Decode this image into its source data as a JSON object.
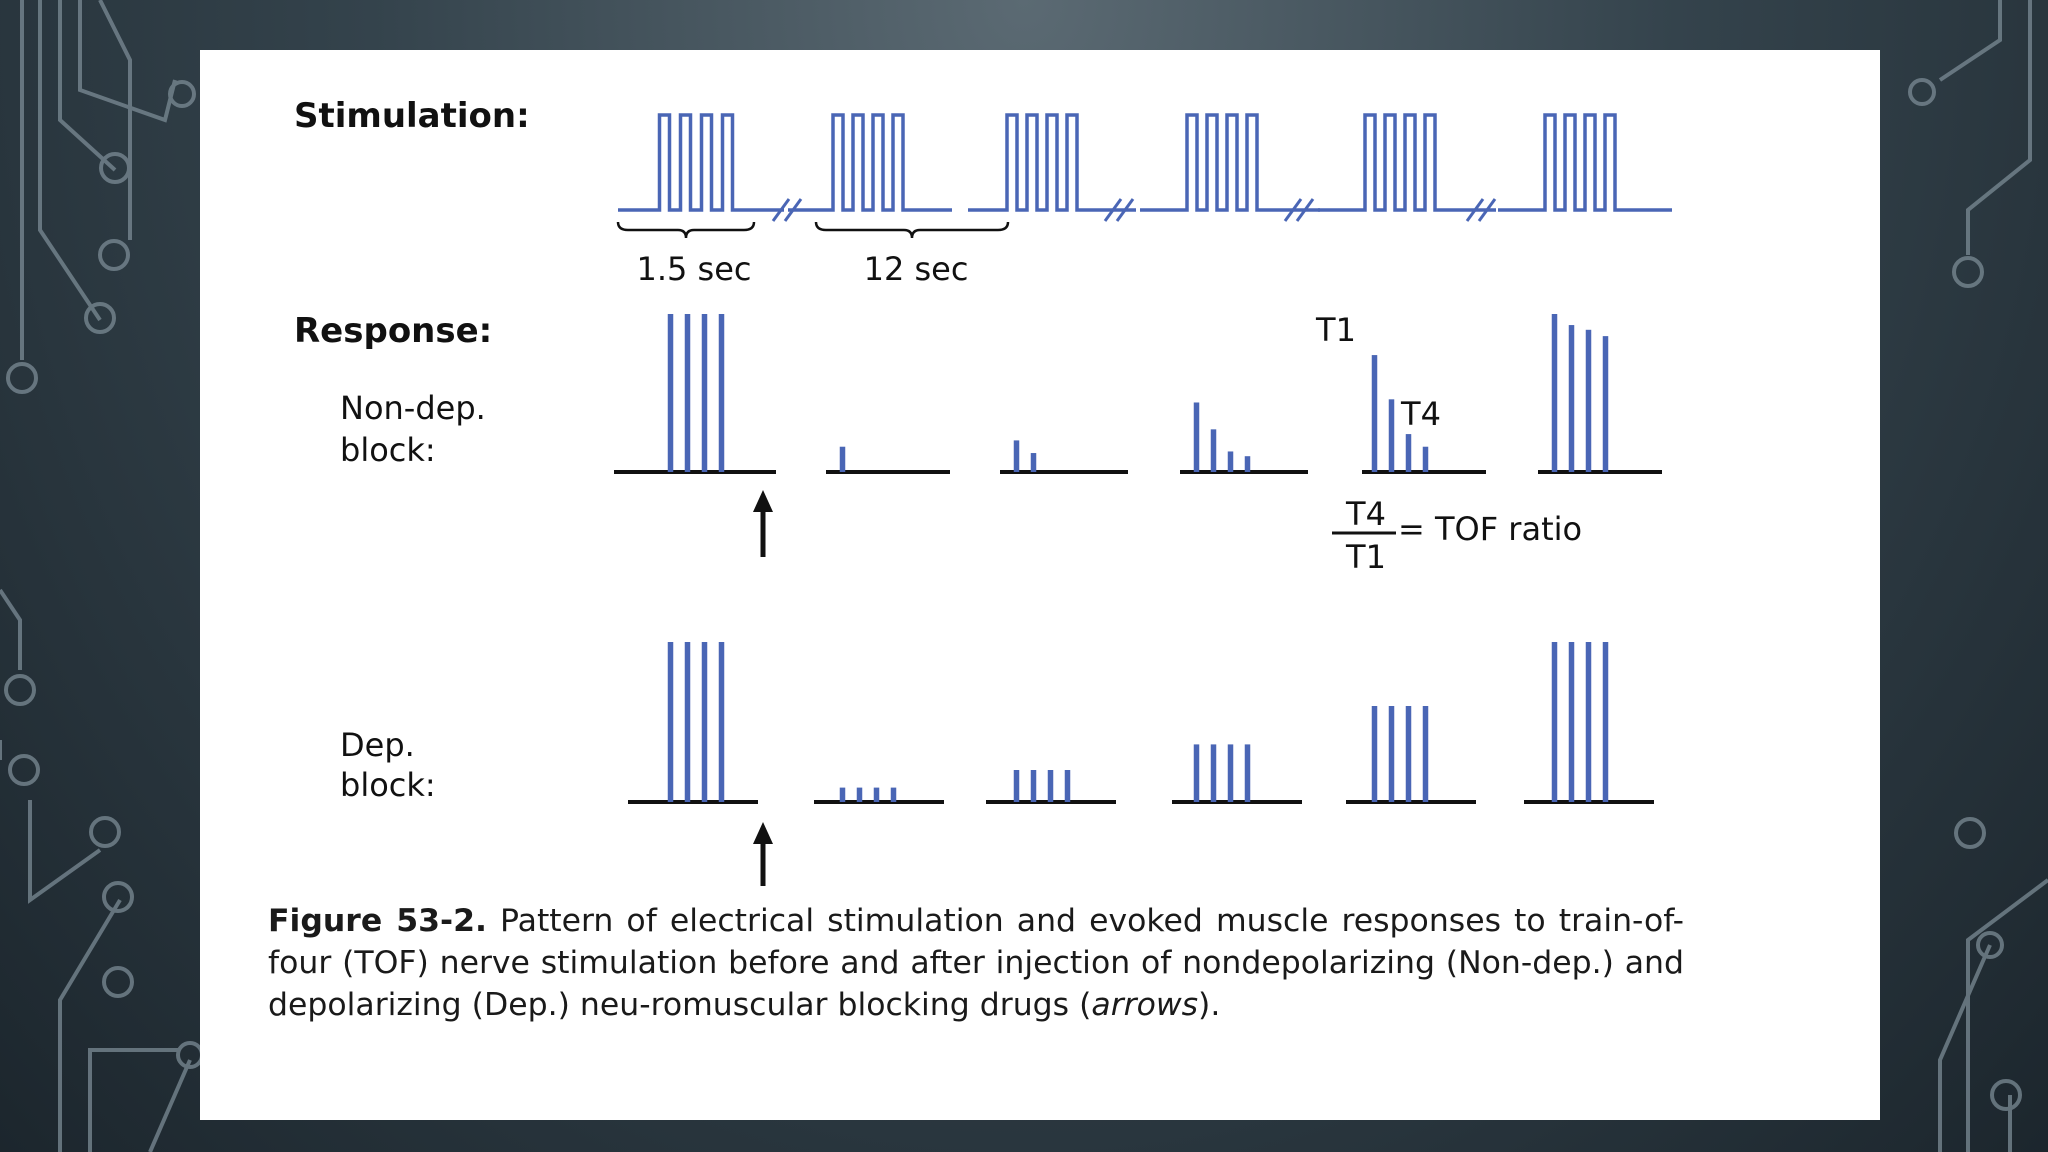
{
  "figure": {
    "stimulation_label": "Stimulation:",
    "response_label": "Response:",
    "nondep_label_line1": "Non-dep.",
    "nondep_label_line2": "block:",
    "dep_label_line1": "Dep.",
    "dep_label_line2": "block:",
    "interval_short": "1.5 sec",
    "interval_long": "12 sec",
    "t1_label": "T1",
    "t4_label": "T4",
    "ratio_numerator": "T4",
    "ratio_denominator": "T1",
    "ratio_equals": "= TOF ratio",
    "pulses_per_train": 4,
    "train_count": 6,
    "nondep_responses": [
      [
        1.0,
        1.0,
        1.0,
        1.0
      ],
      [
        0.16,
        0,
        0,
        0
      ],
      [
        0.2,
        0.12,
        0,
        0
      ],
      [
        0.44,
        0.27,
        0.13,
        0.1
      ],
      [
        0.74,
        0.46,
        0.24,
        0.16
      ],
      [
        1.0,
        0.93,
        0.9,
        0.86
      ]
    ],
    "dep_responses": [
      [
        1.0,
        1.0,
        1.0,
        1.0
      ],
      [
        0.09,
        0.09,
        0.09,
        0.09
      ],
      [
        0.2,
        0.2,
        0.2,
        0.2
      ],
      [
        0.36,
        0.36,
        0.36,
        0.36
      ],
      [
        0.6,
        0.6,
        0.6,
        0.6
      ],
      [
        1.0,
        1.0,
        1.0,
        1.0
      ]
    ],
    "bar_color": "#4a66b5",
    "axis_color": "#111111"
  },
  "caption": {
    "label": "Figure 53-2.",
    "text_before_italic": " Pattern of electrical stimulation and evoked muscle responses to train-of-four (TOF) nerve stimulation before and after injection of nondepolarizing (Non-dep.) and depolarizing (Dep.) neu-romuscular blocking drugs (",
    "italic": "arrows",
    "text_after_italic": ")."
  }
}
